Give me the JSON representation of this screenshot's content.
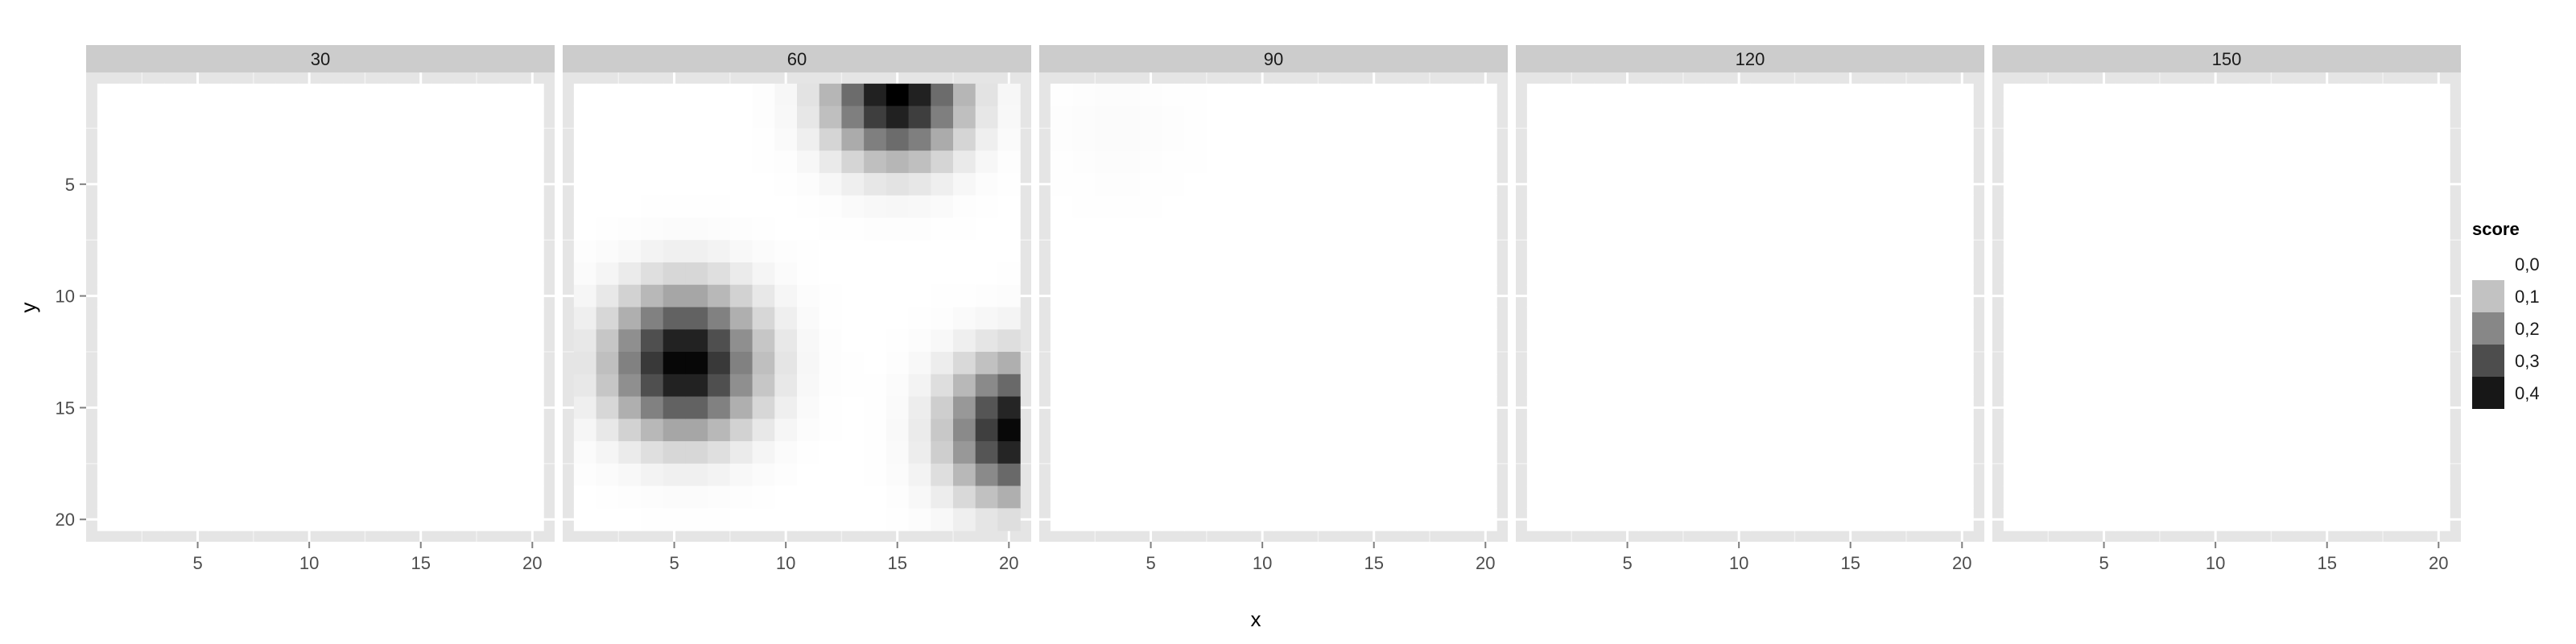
{
  "chart_data": {
    "type": "heatmap",
    "facet_variable": "",
    "facets": [
      {
        "label": "30",
        "blobs": []
      },
      {
        "label": "60",
        "blobs": [
          {
            "cx": 5.5,
            "cy": 13,
            "peak": 0.4,
            "sigma": 2.1
          },
          {
            "cx": 15,
            "cy": 1,
            "peak": 0.4,
            "sigma": 1.9
          },
          {
            "cx": 20.5,
            "cy": 16,
            "peak": 0.4,
            "sigma": 2.0
          }
        ]
      },
      {
        "label": "90",
        "blobs": [
          {
            "cx": 3.5,
            "cy": 2.5,
            "peak": 0.006,
            "sigma": 2.0
          }
        ]
      },
      {
        "label": "120",
        "blobs": []
      },
      {
        "label": "150",
        "blobs": []
      }
    ],
    "x_ticks": [
      "5",
      "10",
      "15",
      "20"
    ],
    "y_ticks": [
      "5",
      "10",
      "15",
      "20"
    ],
    "xlabel": "x",
    "ylabel": "y",
    "xlim": [
      0,
      21
    ],
    "ylim": [
      0,
      21
    ],
    "y_reversed": true,
    "grid": true,
    "legend": {
      "title": "score",
      "placement": "right",
      "entries": [
        "0,0",
        "0,1",
        "0,2",
        "0,3",
        "0,4"
      ],
      "colors": [
        "#ffffff",
        "#c2c2c2",
        "#878787",
        "#4d4d4d",
        "#171717"
      ]
    },
    "colors": {
      "panel_bg": "#e5e5e5",
      "strip_bg": "#cccccc",
      "grid_major": "#ffffff",
      "grid_minor": "#f2f2f2",
      "low": "#ffffff",
      "high": "#000000"
    }
  }
}
